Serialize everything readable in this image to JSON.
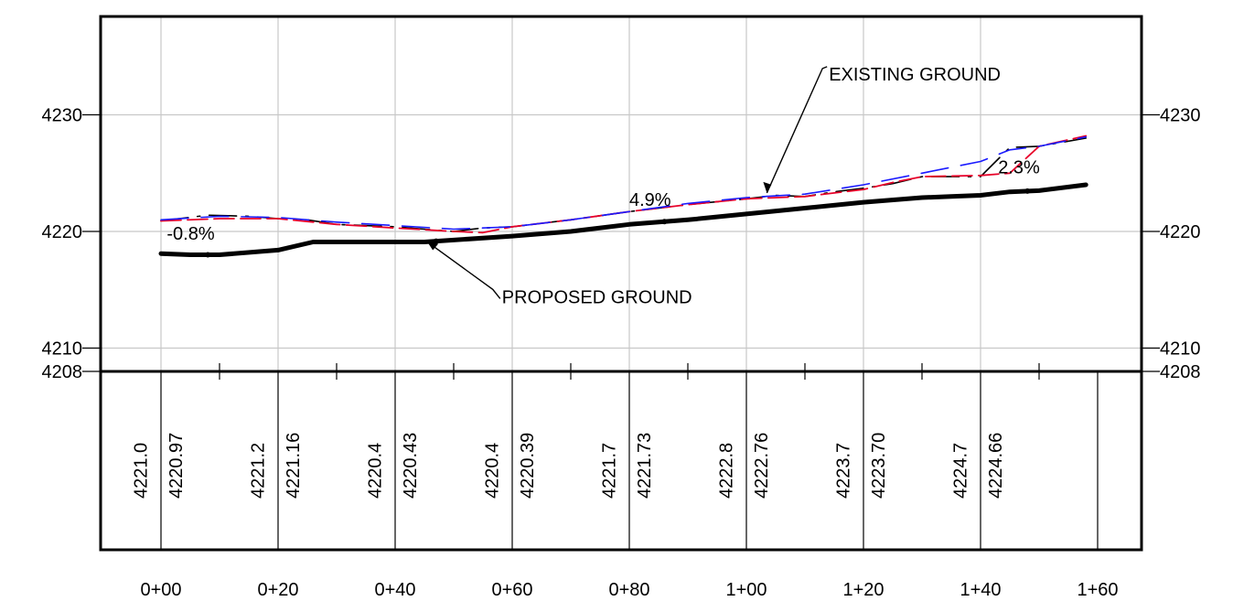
{
  "chart_data": {
    "type": "line",
    "xlabel": "",
    "ylabel": "",
    "xlim": [
      0,
      160
    ],
    "ylim": [
      4208,
      4236
    ],
    "y_ticks": [
      {
        "value": 4230,
        "label": "4230"
      },
      {
        "value": 4220,
        "label": "4220"
      },
      {
        "value": 4210,
        "label": "4210"
      },
      {
        "value": 4208,
        "label": "4208"
      }
    ],
    "x_ticks": [
      {
        "value": 0,
        "label": "0+00"
      },
      {
        "value": 20,
        "label": "0+20"
      },
      {
        "value": 40,
        "label": "0+40"
      },
      {
        "value": 60,
        "label": "0+60"
      },
      {
        "value": 80,
        "label": "0+80"
      },
      {
        "value": 100,
        "label": "1+00"
      },
      {
        "value": 120,
        "label": "1+20"
      },
      {
        "value": 140,
        "label": "1+40"
      },
      {
        "value": 160,
        "label": "1+60"
      }
    ],
    "series": [
      {
        "name": "PROPOSED GROUND",
        "color": "#000000",
        "x": [
          0,
          5,
          10,
          20,
          26,
          30,
          40,
          45,
          60,
          70,
          80,
          90,
          100,
          110,
          120,
          130,
          135,
          140,
          145,
          150,
          158
        ],
        "y": [
          4218.1,
          4218.0,
          4218.0,
          4218.4,
          4219.1,
          4219.1,
          4219.1,
          4219.1,
          4219.6,
          4220.0,
          4220.6,
          4221.0,
          4221.5,
          4222.0,
          4222.5,
          4222.9,
          4223.0,
          4223.1,
          4223.4,
          4223.5,
          4224.0
        ]
      },
      {
        "name": "EXISTING GROUND",
        "color": "#000000",
        "x": [
          0,
          8,
          15,
          20,
          25,
          30,
          40,
          45,
          50,
          55,
          60,
          70,
          80,
          90,
          100,
          105,
          110,
          115,
          120,
          125,
          130,
          135,
          140,
          145,
          150,
          158
        ],
        "y": [
          4220.9,
          4221.4,
          4221.3,
          4221.1,
          4221.0,
          4220.6,
          4220.4,
          4220.2,
          4220.0,
          4220.3,
          4220.4,
          4221.0,
          4221.7,
          4222.3,
          4222.8,
          4223.1,
          4223.0,
          4223.4,
          4223.7,
          4224.1,
          4224.7,
          4224.7,
          4224.7,
          4227.2,
          4227.3,
          4228.0
        ]
      },
      {
        "name": "",
        "color": "#e8002a",
        "x": [
          0,
          10,
          20,
          30,
          40,
          50,
          55,
          60,
          70,
          80,
          90,
          100,
          110,
          120,
          125,
          130,
          140,
          145,
          150,
          158
        ],
        "y": [
          4220.9,
          4221.1,
          4221.1,
          4220.6,
          4220.3,
          4220.0,
          4219.9,
          4220.4,
          4221.0,
          4221.7,
          4222.3,
          4222.8,
          4223.0,
          4223.6,
          4224.2,
          4224.7,
          4224.8,
          4225.0,
          4227.3,
          4228.2
        ]
      },
      {
        "name": "",
        "color": "#1a1aff",
        "x": [
          0,
          10,
          20,
          30,
          40,
          50,
          60,
          70,
          80,
          90,
          100,
          110,
          120,
          130,
          140,
          145,
          150,
          158
        ],
        "y": [
          4221.0,
          4221.3,
          4221.2,
          4220.8,
          4220.5,
          4220.2,
          4220.4,
          4221.0,
          4221.7,
          4222.4,
          4222.9,
          4223.2,
          4224.0,
          4225.0,
          4226.0,
          4227.0,
          4227.3,
          4228.1
        ]
      }
    ],
    "annotations": [
      {
        "text": "EXISTING GROUND",
        "x": 113,
        "y": 4233.5
      },
      {
        "text": "PROPOSED GROUND",
        "x": 57,
        "y": 4214.4
      },
      {
        "text": "-0.8%",
        "x": 1,
        "y": 4219.3
      },
      {
        "text": "4.9%",
        "x": 80,
        "y": 4222.2
      },
      {
        "text": "2.3%",
        "x": 143,
        "y": 4225.0
      }
    ],
    "elevation_table": [
      {
        "value": "4221.0",
        "x": -3.5
      },
      {
        "value": "4220.97",
        "x": 2.5
      },
      {
        "value": "4221.2",
        "x": 16.5
      },
      {
        "value": "4221.16",
        "x": 22.5
      },
      {
        "value": "4220.4",
        "x": 36.5
      },
      {
        "value": "4220.43",
        "x": 42.5
      },
      {
        "value": "4220.4",
        "x": 56.5
      },
      {
        "value": "4220.39",
        "x": 62.5
      },
      {
        "value": "4221.7",
        "x": 76.5
      },
      {
        "value": "4221.73",
        "x": 82.5
      },
      {
        "value": "4222.8",
        "x": 96.5
      },
      {
        "value": "4222.76",
        "x": 102.5
      },
      {
        "value": "4223.7",
        "x": 116.5
      },
      {
        "value": "4223.70",
        "x": 122.5
      },
      {
        "value": "4224.7",
        "x": 136.5
      },
      {
        "value": "4224.66",
        "x": 142.5
      }
    ]
  }
}
